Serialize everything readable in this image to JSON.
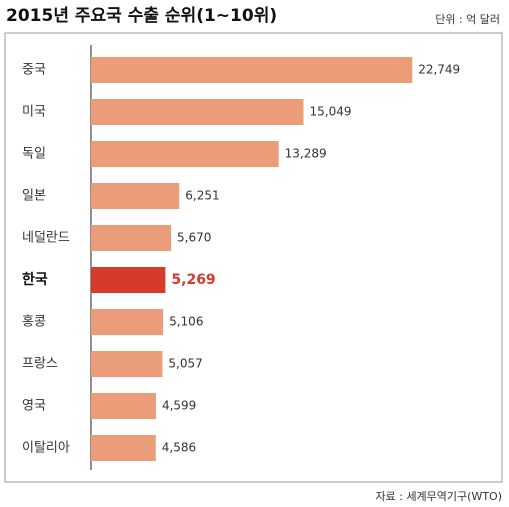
{
  "chart_data": {
    "type": "hbar",
    "title": "2015년 주요국 수출 순위(1~10위)",
    "unit": "단위 : 억 달러",
    "source": "자료 : 세계무역기구(WTO)",
    "categories": [
      "중국",
      "미국",
      "독일",
      "일본",
      "네덜란드",
      "한국",
      "홍콩",
      "프랑스",
      "영국",
      "이탈리아"
    ],
    "values": [
      22749,
      15049,
      13289,
      6251,
      5670,
      5269,
      5106,
      5057,
      4599,
      4586
    ],
    "value_labels": [
      "22,749",
      "15,049",
      "13,289",
      "6,251",
      "5,670",
      "5,269",
      "5,106",
      "5,057",
      "4,599",
      "4,586"
    ],
    "color": "#eb9c78",
    "colors": [
      "#eb9c78",
      "#eb9c78",
      "#eb9c78",
      "#eb9c78",
      "#eb9c78",
      "#d63a2a",
      "#eb9c78",
      "#eb9c78",
      "#eb9c78",
      "#eb9c78"
    ],
    "xlim": [
      0,
      25000
    ]
  }
}
